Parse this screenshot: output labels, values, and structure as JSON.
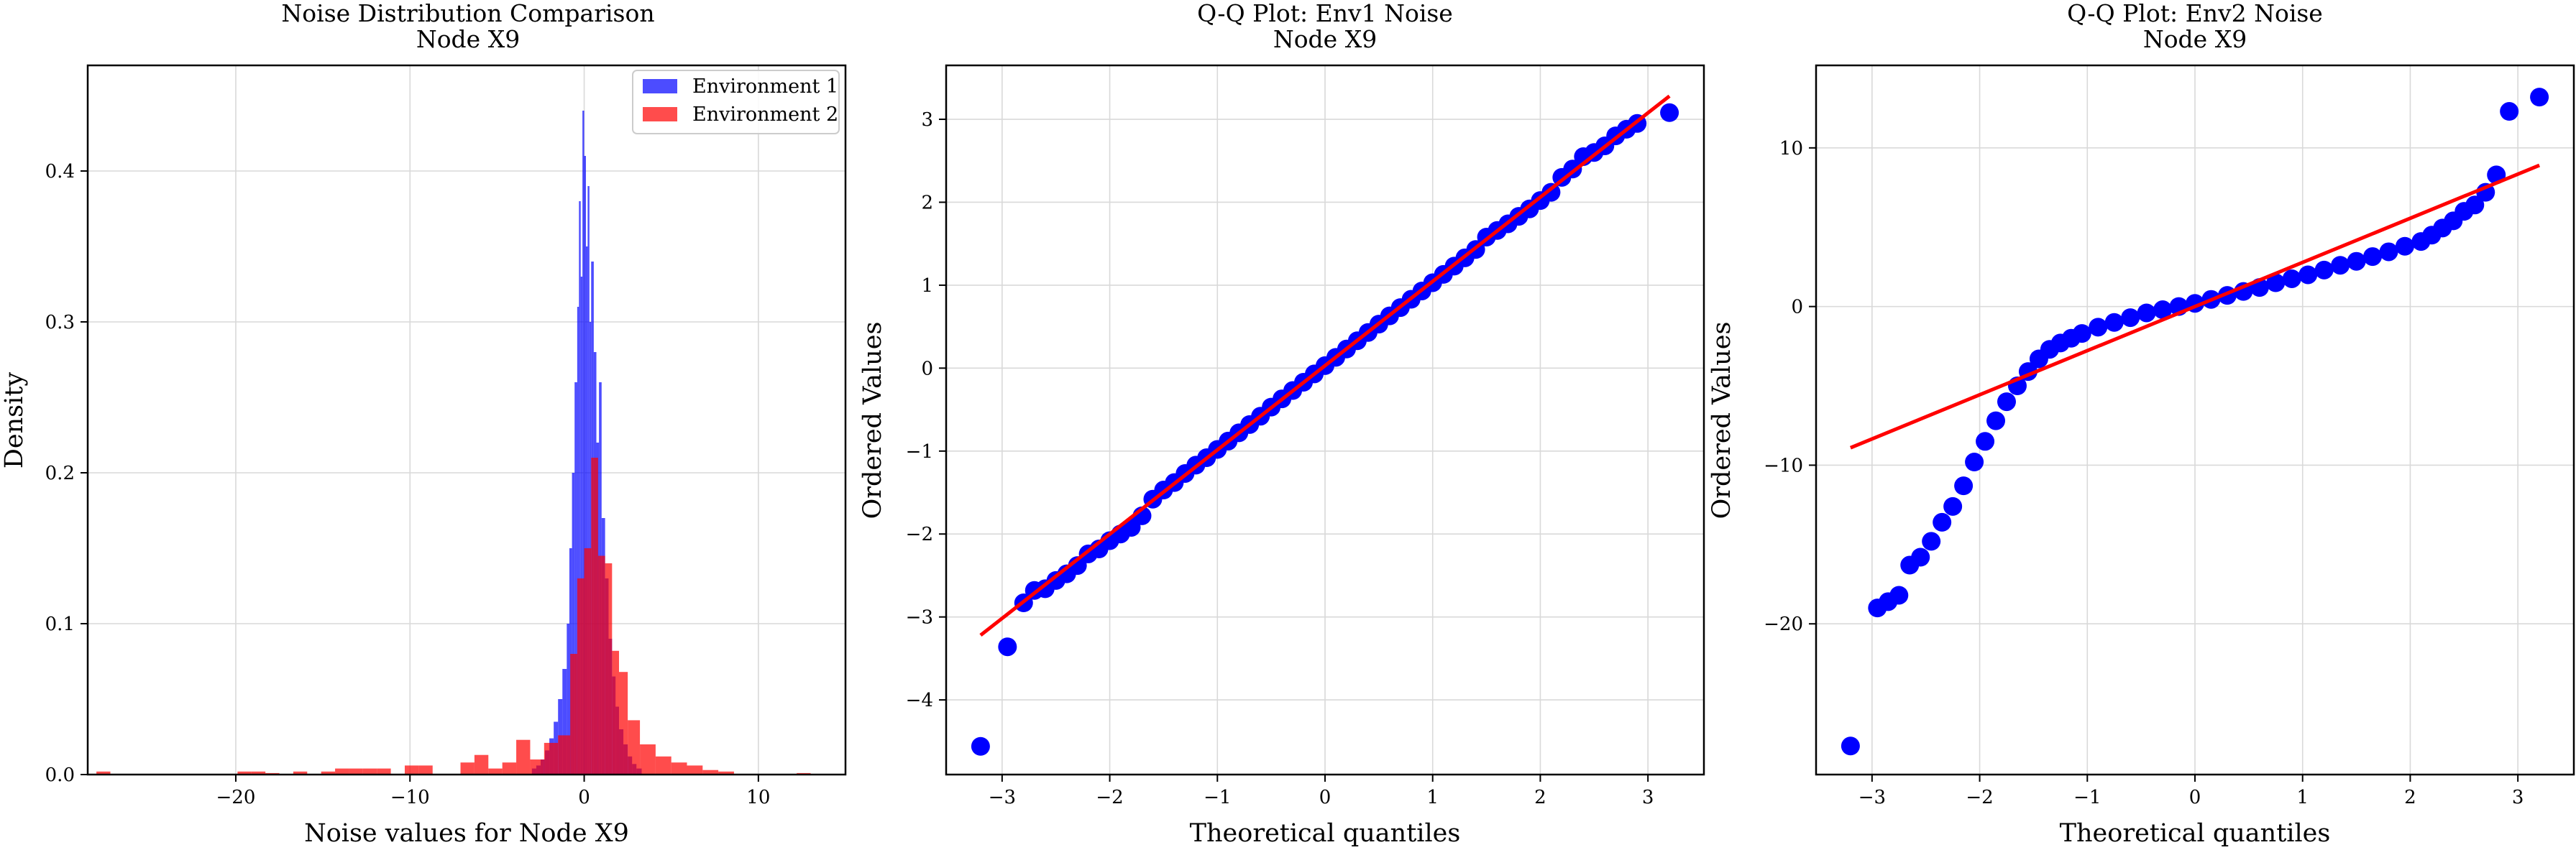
{
  "figure": {
    "charts": [
      {
        "title_line1": "Noise Distribution Comparison",
        "title_line2": "Node X9",
        "xlabel": "Noise values for Node X9",
        "ylabel": "Density",
        "xticks": [
          "−20",
          "−10",
          "0",
          "10"
        ],
        "yticks": [
          "0.0",
          "0.1",
          "0.2",
          "0.3",
          "0.4"
        ],
        "legend": [
          "Environment 1",
          "Environment 2"
        ]
      },
      {
        "title_line1": "Q-Q Plot: Env1 Noise",
        "title_line2": "Node X9",
        "xlabel": "Theoretical quantiles",
        "ylabel": "Ordered Values",
        "xticks": [
          "−3",
          "−2",
          "−1",
          "0",
          "1",
          "2",
          "3"
        ],
        "yticks": [
          "−4",
          "−3",
          "−2",
          "−1",
          "0",
          "1",
          "2",
          "3"
        ]
      },
      {
        "title_line1": "Q-Q Plot: Env2 Noise",
        "title_line2": "Node X9",
        "xlabel": "Theoretical quantiles",
        "ylabel": "Ordered Values",
        "xticks": [
          "−3",
          "−2",
          "−1",
          "0",
          "1",
          "2",
          "3"
        ],
        "yticks": [
          "−20",
          "−10",
          "0",
          "10"
        ]
      }
    ]
  },
  "chart_data": [
    {
      "type": "histogram",
      "title": "Noise Distribution Comparison\nNode X9",
      "xlabel": "Noise values for Node X9",
      "ylabel": "Density",
      "xlim": [
        -28.5,
        15
      ],
      "ylim": [
        0,
        0.47
      ],
      "xticks": [
        -20,
        -10,
        0,
        10
      ],
      "yticks": [
        0,
        0.1,
        0.2,
        0.3,
        0.4
      ],
      "grid": true,
      "legend_position": "upper right",
      "series": [
        {
          "name": "Environment 1",
          "color": "#0000ff",
          "alpha": 0.7,
          "bins": [
            [
              -3.0,
              -2.75,
              0.004
            ],
            [
              -2.75,
              -2.5,
              0.006
            ],
            [
              -2.5,
              -2.25,
              0.01
            ],
            [
              -2.25,
              -2.0,
              0.016
            ],
            [
              -2.0,
              -1.75,
              0.024
            ],
            [
              -1.75,
              -1.5,
              0.035
            ],
            [
              -1.5,
              -1.25,
              0.05
            ],
            [
              -1.25,
              -1.0,
              0.07
            ],
            [
              -1.0,
              -0.85,
              0.1
            ],
            [
              -0.85,
              -0.7,
              0.15
            ],
            [
              -0.7,
              -0.55,
              0.2
            ],
            [
              -0.55,
              -0.4,
              0.26
            ],
            [
              -0.4,
              -0.3,
              0.31
            ],
            [
              -0.3,
              -0.2,
              0.38
            ],
            [
              -0.2,
              -0.1,
              0.33
            ],
            [
              -0.1,
              0.0,
              0.44
            ],
            [
              0.0,
              0.1,
              0.41
            ],
            [
              0.1,
              0.2,
              0.35
            ],
            [
              0.2,
              0.3,
              0.39
            ],
            [
              0.3,
              0.4,
              0.3
            ],
            [
              0.4,
              0.55,
              0.34
            ],
            [
              0.55,
              0.7,
              0.28
            ],
            [
              0.7,
              0.85,
              0.22
            ],
            [
              0.85,
              1.0,
              0.26
            ],
            [
              1.0,
              1.2,
              0.17
            ],
            [
              1.2,
              1.4,
              0.13
            ],
            [
              1.4,
              1.6,
              0.09
            ],
            [
              1.6,
              1.8,
              0.065
            ],
            [
              1.8,
              2.0,
              0.045
            ],
            [
              2.0,
              2.25,
              0.03
            ],
            [
              2.25,
              2.5,
              0.02
            ],
            [
              2.5,
              2.75,
              0.012
            ],
            [
              2.75,
              3.0,
              0.007
            ],
            [
              3.0,
              3.3,
              0.004
            ]
          ]
        },
        {
          "name": "Environment 2",
          "color": "#ff0000",
          "alpha": 0.7,
          "bins": [
            [
              -28.0,
              -27.2,
              0.002
            ],
            [
              -19.9,
              -19.1,
              0.002
            ],
            [
              -19.1,
              -18.3,
              0.002
            ],
            [
              -18.3,
              -17.5,
              0.001
            ],
            [
              -16.7,
              -15.9,
              0.002
            ],
            [
              -15.1,
              -14.3,
              0.002
            ],
            [
              -14.3,
              -13.5,
              0.004
            ],
            [
              -13.5,
              -12.7,
              0.004
            ],
            [
              -12.7,
              -11.9,
              0.004
            ],
            [
              -11.9,
              -11.1,
              0.004
            ],
            [
              -10.3,
              -9.5,
              0.006
            ],
            [
              -9.5,
              -8.7,
              0.006
            ],
            [
              -7.1,
              -6.3,
              0.008
            ],
            [
              -6.3,
              -5.5,
              0.013
            ],
            [
              -5.5,
              -4.7,
              0.004
            ],
            [
              -4.7,
              -3.9,
              0.008
            ],
            [
              -3.9,
              -3.1,
              0.023
            ],
            [
              -3.1,
              -2.3,
              0.01
            ],
            [
              -2.3,
              -1.5,
              0.021
            ],
            [
              -1.5,
              -0.8,
              0.026
            ],
            [
              -0.8,
              -0.4,
              0.08
            ],
            [
              -0.4,
              0.0,
              0.13
            ],
            [
              0.0,
              0.4,
              0.15
            ],
            [
              0.4,
              0.8,
              0.21
            ],
            [
              0.8,
              1.2,
              0.145
            ],
            [
              1.2,
              1.6,
              0.14
            ],
            [
              1.6,
              2.0,
              0.082
            ],
            [
              2.0,
              2.5,
              0.068
            ],
            [
              2.5,
              3.2,
              0.036
            ],
            [
              3.2,
              4.1,
              0.02
            ],
            [
              4.1,
              5.0,
              0.012
            ],
            [
              5.0,
              5.9,
              0.008
            ],
            [
              5.9,
              6.8,
              0.006
            ],
            [
              6.8,
              7.7,
              0.003
            ],
            [
              7.7,
              8.6,
              0.002
            ],
            [
              12.2,
              13.0,
              0.001
            ]
          ]
        }
      ]
    },
    {
      "type": "scatter",
      "title": "Q-Q Plot: Env1 Noise\nNode X9",
      "xlabel": "Theoretical quantiles",
      "ylabel": "Ordered Values",
      "xlim": [
        -3.52,
        3.52
      ],
      "ylim": [
        -4.9,
        3.65
      ],
      "xticks": [
        -3,
        -2,
        -1,
        0,
        1,
        2,
        3
      ],
      "yticks": [
        -4,
        -3,
        -2,
        -1,
        0,
        1,
        2,
        3
      ],
      "grid": true,
      "fit_line": {
        "x": [
          -3.2,
          3.2
        ],
        "y": [
          -3.22,
          3.28
        ],
        "color": "#ff0000"
      },
      "series": [
        {
          "name": "",
          "color": "#0000ff",
          "points": [
            [
              -3.2,
              -4.56
            ],
            [
              -2.95,
              -3.36
            ],
            [
              -2.8,
              -2.83
            ],
            [
              -2.7,
              -2.68
            ],
            [
              -2.6,
              -2.66
            ],
            [
              -2.5,
              -2.56
            ],
            [
              -2.4,
              -2.48
            ],
            [
              -2.3,
              -2.38
            ],
            [
              -2.2,
              -2.24
            ],
            [
              -2.1,
              -2.18
            ],
            [
              -2.0,
              -2.08
            ],
            [
              -1.9,
              -2.0
            ],
            [
              -1.8,
              -1.92
            ],
            [
              -1.7,
              -1.78
            ],
            [
              -1.6,
              -1.58
            ],
            [
              -1.5,
              -1.47
            ],
            [
              -1.4,
              -1.38
            ],
            [
              -1.3,
              -1.27
            ],
            [
              -1.2,
              -1.17
            ],
            [
              -1.1,
              -1.08
            ],
            [
              -1.0,
              -0.98
            ],
            [
              -0.9,
              -0.88
            ],
            [
              -0.8,
              -0.78
            ],
            [
              -0.7,
              -0.68
            ],
            [
              -0.6,
              -0.58
            ],
            [
              -0.5,
              -0.47
            ],
            [
              -0.4,
              -0.37
            ],
            [
              -0.3,
              -0.27
            ],
            [
              -0.2,
              -0.17
            ],
            [
              -0.1,
              -0.07
            ],
            [
              0.0,
              0.03
            ],
            [
              0.1,
              0.13
            ],
            [
              0.2,
              0.23
            ],
            [
              0.3,
              0.33
            ],
            [
              0.4,
              0.43
            ],
            [
              0.5,
              0.53
            ],
            [
              0.6,
              0.63
            ],
            [
              0.7,
              0.73
            ],
            [
              0.8,
              0.83
            ],
            [
              0.9,
              0.93
            ],
            [
              1.0,
              1.03
            ],
            [
              1.1,
              1.13
            ],
            [
              1.2,
              1.23
            ],
            [
              1.3,
              1.33
            ],
            [
              1.4,
              1.43
            ],
            [
              1.5,
              1.58
            ],
            [
              1.6,
              1.66
            ],
            [
              1.7,
              1.74
            ],
            [
              1.8,
              1.83
            ],
            [
              1.9,
              1.92
            ],
            [
              2.0,
              2.02
            ],
            [
              2.1,
              2.12
            ],
            [
              2.2,
              2.3
            ],
            [
              2.3,
              2.4
            ],
            [
              2.4,
              2.55
            ],
            [
              2.5,
              2.6
            ],
            [
              2.6,
              2.68
            ],
            [
              2.7,
              2.8
            ],
            [
              2.8,
              2.88
            ],
            [
              2.9,
              2.95
            ],
            [
              3.2,
              3.08
            ]
          ]
        }
      ]
    },
    {
      "type": "scatter",
      "title": "Q-Q Plot: Env2 Noise\nNode X9",
      "xlabel": "Theoretical quantiles",
      "ylabel": "Ordered Values",
      "xlim": [
        -3.52,
        3.52
      ],
      "ylim": [
        -29.5,
        15.2
      ],
      "xticks": [
        -3,
        -2,
        -1,
        0,
        1,
        2,
        3
      ],
      "yticks": [
        -20,
        -10,
        0,
        10
      ],
      "grid": true,
      "fit_line": {
        "x": [
          -3.2,
          3.2
        ],
        "y": [
          -8.9,
          8.9
        ],
        "color": "#ff0000"
      },
      "series": [
        {
          "name": "",
          "color": "#0000ff",
          "points": [
            [
              -3.2,
              -27.7
            ],
            [
              -2.95,
              -19.0
            ],
            [
              -2.85,
              -18.6
            ],
            [
              -2.75,
              -18.2
            ],
            [
              -2.65,
              -16.3
            ],
            [
              -2.55,
              -15.8
            ],
            [
              -2.45,
              -14.8
            ],
            [
              -2.35,
              -13.6
            ],
            [
              -2.25,
              -12.6
            ],
            [
              -2.15,
              -11.3
            ],
            [
              -2.05,
              -9.8
            ],
            [
              -1.95,
              -8.5
            ],
            [
              -1.85,
              -7.2
            ],
            [
              -1.75,
              -6.0
            ],
            [
              -1.65,
              -5.0
            ],
            [
              -1.55,
              -4.1
            ],
            [
              -1.45,
              -3.3
            ],
            [
              -1.35,
              -2.7
            ],
            [
              -1.25,
              -2.3
            ],
            [
              -1.15,
              -2.0
            ],
            [
              -1.05,
              -1.7
            ],
            [
              -0.9,
              -1.3
            ],
            [
              -0.75,
              -1.0
            ],
            [
              -0.6,
              -0.7
            ],
            [
              -0.45,
              -0.4
            ],
            [
              -0.3,
              -0.2
            ],
            [
              -0.15,
              0.0
            ],
            [
              0.0,
              0.2
            ],
            [
              0.15,
              0.45
            ],
            [
              0.3,
              0.7
            ],
            [
              0.45,
              0.95
            ],
            [
              0.6,
              1.2
            ],
            [
              0.75,
              1.5
            ],
            [
              0.9,
              1.75
            ],
            [
              1.05,
              2.0
            ],
            [
              1.2,
              2.3
            ],
            [
              1.35,
              2.6
            ],
            [
              1.5,
              2.85
            ],
            [
              1.65,
              3.15
            ],
            [
              1.8,
              3.45
            ],
            [
              1.95,
              3.8
            ],
            [
              2.1,
              4.1
            ],
            [
              2.2,
              4.5
            ],
            [
              2.3,
              4.95
            ],
            [
              2.4,
              5.4
            ],
            [
              2.5,
              6.0
            ],
            [
              2.6,
              6.4
            ],
            [
              2.7,
              7.2
            ],
            [
              2.8,
              8.3
            ],
            [
              2.92,
              12.3
            ],
            [
              3.2,
              13.2
            ]
          ]
        }
      ]
    }
  ]
}
